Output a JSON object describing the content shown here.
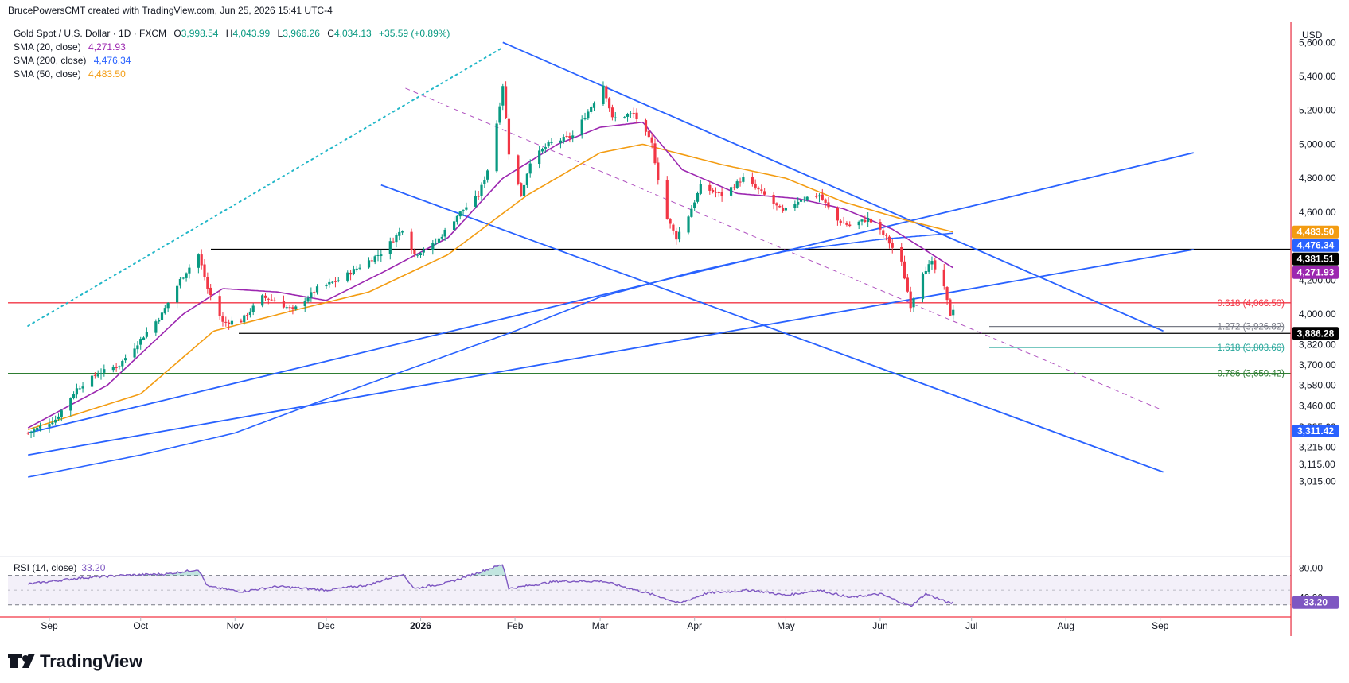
{
  "attribution": "BrucePowersCMT created with TradingView.com, Jun 25, 2026 15:41 UTC-4",
  "legend": {
    "symbol": "Gold Spot / U.S. Dollar · 1D · FXCM",
    "ohlc": {
      "O": "3,998.54",
      "H": "4,043.99",
      "L": "3,966.26",
      "C": "4,034.13"
    },
    "ohlc_labels": {
      "O": "O",
      "H": "H",
      "L": "L",
      "C": "C"
    },
    "change": "+35.59 (+0.89%)",
    "indicators": [
      {
        "label": "SMA (20, close)",
        "value": "4,271.93",
        "color": "#9c27b0"
      },
      {
        "label": "SMA (200, close)",
        "value": "4,476.34",
        "color": "#2962ff"
      },
      {
        "label": "SMA (50, close)",
        "value": "4,483.50",
        "color": "#f39c12"
      }
    ]
  },
  "currency": "USD",
  "brand": "TradingView",
  "colors": {
    "up": "#089981",
    "down": "#f23645",
    "trend": "#2962ff",
    "sma20": "#9c27b0",
    "sma50": "#f39c12",
    "sma200": "#2962ff",
    "dotted": "#22b7c8",
    "rsi": "#7e57c2"
  },
  "chart_data": {
    "type": "candlestick",
    "title": "Gold Spot / U.S. Dollar · 1D · FXCM",
    "ylabel": "USD",
    "ylim": [
      2930,
      5600
    ],
    "y_ticks": [
      "5,600.00",
      "5,400.00",
      "5,200.00",
      "5,000.00",
      "4,800.00",
      "4,600.00",
      "4,400.00",
      "4,200.00",
      "4,000.00",
      "3,820.00",
      "3,700.00",
      "3,580.00",
      "3,460.00",
      "3,335.00",
      "3,215.00",
      "3,115.00",
      "3,015.00"
    ],
    "y_tick_values": [
      5600,
      5400,
      5200,
      5000,
      4800,
      4600,
      4400,
      4200,
      4000,
      3820,
      3700,
      3580,
      3460,
      3335,
      3215,
      3115,
      3015
    ],
    "x_ticks": [
      "Sep",
      "Oct",
      "Nov",
      "Dec",
      "2026",
      "Feb",
      "Mar",
      "Apr",
      "May",
      "Jun",
      "Jul",
      "Aug",
      "Sep"
    ],
    "x_tick_dates": [
      "2025-09-01",
      "2025-10-01",
      "2025-11-01",
      "2025-12-01",
      "2026-01-01",
      "2026-02-01",
      "2026-03-01",
      "2026-04-01",
      "2026-05-01",
      "2026-06-01",
      "2026-07-01",
      "2026-08-01",
      "2026-09-01"
    ],
    "close_anchors": [
      [
        "2025-08-25",
        3300
      ],
      [
        "2025-09-03",
        3380
      ],
      [
        "2025-09-10",
        3560
      ],
      [
        "2025-09-17",
        3650
      ],
      [
        "2025-09-24",
        3700
      ],
      [
        "2025-10-01",
        3850
      ],
      [
        "2025-10-08",
        4000
      ],
      [
        "2025-10-14",
        4200
      ],
      [
        "2025-10-20",
        4350
      ],
      [
        "2025-10-23",
        4150
      ],
      [
        "2025-10-28",
        3950
      ],
      [
        "2025-11-03",
        3960
      ],
      [
        "2025-11-10",
        4100
      ],
      [
        "2025-11-14",
        4080
      ],
      [
        "2025-11-20",
        4020
      ],
      [
        "2025-11-28",
        4150
      ],
      [
        "2025-12-05",
        4200
      ],
      [
        "2025-12-12",
        4280
      ],
      [
        "2025-12-19",
        4360
      ],
      [
        "2025-12-26",
        4500
      ],
      [
        "2025-12-30",
        4350
      ],
      [
        "2026-01-06",
        4420
      ],
      [
        "2026-01-13",
        4580
      ],
      [
        "2026-01-20",
        4700
      ],
      [
        "2026-01-24",
        4900
      ],
      [
        "2026-01-28",
        5350
      ],
      [
        "2026-01-30",
        4950
      ],
      [
        "2026-02-03",
        4700
      ],
      [
        "2026-02-06",
        4900
      ],
      [
        "2026-02-12",
        5000
      ],
      [
        "2026-02-20",
        5050
      ],
      [
        "2026-02-27",
        5250
      ],
      [
        "2026-03-02",
        5350
      ],
      [
        "2026-03-05",
        5150
      ],
      [
        "2026-03-12",
        5180
      ],
      [
        "2026-03-18",
        5000
      ],
      [
        "2026-03-22",
        4600
      ],
      [
        "2026-03-26",
        4450
      ],
      [
        "2026-03-30",
        4580
      ],
      [
        "2026-04-03",
        4750
      ],
      [
        "2026-04-10",
        4700
      ],
      [
        "2026-04-17",
        4800
      ],
      [
        "2026-04-24",
        4700
      ],
      [
        "2026-04-30",
        4600
      ],
      [
        "2026-05-06",
        4680
      ],
      [
        "2026-05-12",
        4700
      ],
      [
        "2026-05-18",
        4550
      ],
      [
        "2026-05-22",
        4520
      ],
      [
        "2026-05-28",
        4560
      ],
      [
        "2026-06-03",
        4450
      ],
      [
        "2026-06-08",
        4300
      ],
      [
        "2026-06-11",
        4050
      ],
      [
        "2026-06-15",
        4250
      ],
      [
        "2026-06-18",
        4300
      ],
      [
        "2026-06-22",
        4150
      ],
      [
        "2026-06-24",
        3998
      ],
      [
        "2026-06-25",
        4034
      ]
    ],
    "sma20_anchors": [
      [
        "2025-08-25",
        3330
      ],
      [
        "2025-09-20",
        3580
      ],
      [
        "2025-10-15",
        4000
      ],
      [
        "2025-10-28",
        4150
      ],
      [
        "2025-11-15",
        4130
      ],
      [
        "2025-12-01",
        4080
      ],
      [
        "2025-12-20",
        4250
      ],
      [
        "2026-01-10",
        4450
      ],
      [
        "2026-01-28",
        4800
      ],
      [
        "2026-02-15",
        5000
      ],
      [
        "2026-03-01",
        5100
      ],
      [
        "2026-03-15",
        5130
      ],
      [
        "2026-03-28",
        4850
      ],
      [
        "2026-04-15",
        4710
      ],
      [
        "2026-05-05",
        4680
      ],
      [
        "2026-05-20",
        4620
      ],
      [
        "2026-06-05",
        4500
      ],
      [
        "2026-06-25",
        4271.93
      ]
    ],
    "sma50_anchors": [
      [
        "2025-08-25",
        3320
      ],
      [
        "2025-10-01",
        3530
      ],
      [
        "2025-10-25",
        3900
      ],
      [
        "2025-11-20",
        4020
      ],
      [
        "2025-12-15",
        4130
      ],
      [
        "2026-01-10",
        4350
      ],
      [
        "2026-02-05",
        4700
      ],
      [
        "2026-03-01",
        4950
      ],
      [
        "2026-03-15",
        5000
      ],
      [
        "2026-04-10",
        4880
      ],
      [
        "2026-05-01",
        4800
      ],
      [
        "2026-05-20",
        4660
      ],
      [
        "2026-06-10",
        4550
      ],
      [
        "2026-06-25",
        4483.5
      ]
    ],
    "sma200_anchors": [
      [
        "2025-08-25",
        3040
      ],
      [
        "2025-10-01",
        3170
      ],
      [
        "2025-11-01",
        3300
      ],
      [
        "2025-12-01",
        3500
      ],
      [
        "2026-01-01",
        3700
      ],
      [
        "2026-02-01",
        3900
      ],
      [
        "2026-03-01",
        4100
      ],
      [
        "2026-04-01",
        4250
      ],
      [
        "2026-05-01",
        4370
      ],
      [
        "2026-06-01",
        4440
      ],
      [
        "2026-06-25",
        4476.34
      ]
    ],
    "levels": [
      {
        "name": "resistance",
        "value": 4381.51,
        "label": "4,381.51",
        "color": "#000000"
      },
      {
        "name": "support",
        "value": 3886.28,
        "label": "3,886.28",
        "color": "#000000"
      },
      {
        "name": "fib-0618",
        "value": 4066.5,
        "label": "0.618 (4,066.50)",
        "color": "#f23645"
      },
      {
        "name": "fib-0786",
        "value": 3650.42,
        "label": "0.786 (3,650.42)",
        "color": "#2e7d32"
      },
      {
        "name": "fib-1272",
        "value": 3926.82,
        "label": "1.272 (3,926.82)",
        "color": "#787b86"
      },
      {
        "name": "fib-1618",
        "value": 3803.66,
        "label": "1.618 (3,803.66)",
        "color": "#26a69a"
      }
    ],
    "trendlines": [
      {
        "name": "channel-top",
        "from": [
          "2026-01-28",
          5600
        ],
        "to": [
          "2026-09-02",
          3900
        ]
      },
      {
        "name": "channel-bottom",
        "from": [
          "2025-12-19",
          4760
        ],
        "to": [
          "2026-09-02",
          3070
        ]
      },
      {
        "name": "long-up-1",
        "from": [
          "2025-08-25",
          3300
        ],
        "to": [
          "2026-09-12",
          4950
        ]
      },
      {
        "name": "long-up-2",
        "from": [
          "2025-08-25",
          3170
        ],
        "to": [
          "2026-09-12",
          4380
        ]
      }
    ],
    "dotted_trend": {
      "from": [
        "2025-08-25",
        3930
      ],
      "to": [
        "2026-01-28",
        5570
      ]
    },
    "dashed_trend": {
      "from": [
        "2025-12-27",
        5330
      ],
      "to": [
        "2026-09-01",
        3440
      ]
    },
    "price_badges": [
      {
        "label": "4,483.50",
        "value": 4483.5,
        "color": "#f39c12"
      },
      {
        "label": "4,476.34",
        "value": 4476.34,
        "color": "#2962ff"
      },
      {
        "label": "4,381.51",
        "value": 4381.51,
        "color": "#000000"
      },
      {
        "label": "4,271.93",
        "value": 4271.93,
        "color": "#9c27b0"
      },
      {
        "label": "3,886.28",
        "value": 3886.28,
        "color": "#000000"
      },
      {
        "label": "3,311.42",
        "value": 3311.42,
        "color": "#2962ff"
      }
    ],
    "rsi": {
      "label": "RSI (14, close)",
      "value": "33.20",
      "ylim": [
        20,
        90
      ],
      "ticks": [
        "80.00",
        "40.00"
      ],
      "tick_values": [
        80,
        40
      ],
      "bands": [
        70,
        30
      ],
      "anchors": [
        [
          "2025-08-25",
          58
        ],
        [
          "2025-09-10",
          66
        ],
        [
          "2025-09-25",
          70
        ],
        [
          "2025-10-10",
          72
        ],
        [
          "2025-10-20",
          78
        ],
        [
          "2025-10-23",
          55
        ],
        [
          "2025-11-03",
          48
        ],
        [
          "2025-11-15",
          55
        ],
        [
          "2025-12-01",
          50
        ],
        [
          "2025-12-15",
          57
        ],
        [
          "2025-12-26",
          72
        ],
        [
          "2025-12-30",
          52
        ],
        [
          "2026-01-10",
          60
        ],
        [
          "2026-01-28",
          85
        ],
        [
          "2026-01-30",
          52
        ],
        [
          "2026-02-15",
          62
        ],
        [
          "2026-03-02",
          62
        ],
        [
          "2026-03-20",
          42
        ],
        [
          "2026-03-27",
          32
        ],
        [
          "2026-04-05",
          46
        ],
        [
          "2026-04-20",
          50
        ],
        [
          "2026-05-01",
          43
        ],
        [
          "2026-05-12",
          50
        ],
        [
          "2026-05-22",
          40
        ],
        [
          "2026-06-01",
          45
        ],
        [
          "2026-06-11",
          28
        ],
        [
          "2026-06-16",
          45
        ],
        [
          "2026-06-24",
          32
        ],
        [
          "2026-06-25",
          33.2
        ]
      ]
    }
  }
}
